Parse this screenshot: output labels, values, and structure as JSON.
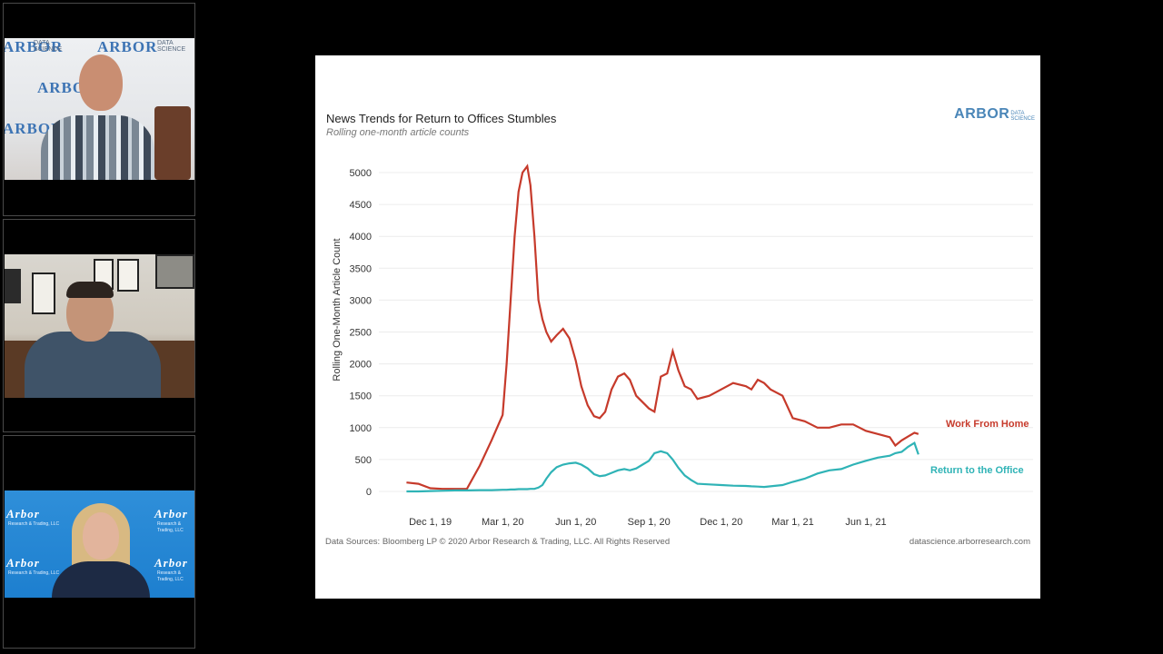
{
  "participants": [
    {
      "name": "participant-1",
      "backdrop_text": "ARBOR",
      "backdrop_sub": [
        "DATA",
        "SCIENCE"
      ]
    },
    {
      "name": "participant-2"
    },
    {
      "name": "participant-3",
      "backdrop_text": "Arbor",
      "backdrop_sub": [
        "Research & Trading, LLC"
      ]
    }
  ],
  "slide": {
    "title": "News Trends for Return to Offices Stumbles",
    "subtitle": "Rolling one-month article counts",
    "logo": {
      "main": "ARBOR",
      "sub1": "DATA",
      "sub2": "SCIENCE"
    },
    "footer_left": "Data Sources: Bloomberg LP © 2020 Arbor Research & Trading, LLC. All Rights Reserved",
    "footer_right": "datascience.arborresearch.com"
  },
  "colors": {
    "work_from_home": "#c63a2b",
    "return_to_office": "#2fb3b6"
  },
  "chart_data": {
    "type": "line",
    "title": "News Trends for Return to Offices Stumbles",
    "subtitle": "Rolling one-month article counts",
    "xlabel": "",
    "ylabel": "Rolling One-Month Article Count",
    "ylim": [
      0,
      5000
    ],
    "yticks": [
      "0",
      "500",
      "1000",
      "1500",
      "2000",
      "2500",
      "3000",
      "3500",
      "4000",
      "4500",
      "5000"
    ],
    "xticks": [
      "Dec 1, 19",
      "Mar 1, 20",
      "Jun 1, 20",
      "Sep 1, 20",
      "Dec 1, 20",
      "Mar 1, 21",
      "Jun 1, 21"
    ],
    "grid": true,
    "legend": "inline-labels",
    "x": [
      "2019-11-01",
      "2019-11-16",
      "2019-12-01",
      "2019-12-16",
      "2020-01-01",
      "2020-01-16",
      "2020-02-01",
      "2020-02-16",
      "2020-03-01",
      "2020-03-06",
      "2020-03-11",
      "2020-03-16",
      "2020-03-21",
      "2020-03-26",
      "2020-04-01",
      "2020-04-05",
      "2020-04-10",
      "2020-04-15",
      "2020-04-20",
      "2020-04-25",
      "2020-05-01",
      "2020-05-08",
      "2020-05-16",
      "2020-05-24",
      "2020-06-01",
      "2020-06-08",
      "2020-06-16",
      "2020-06-24",
      "2020-07-01",
      "2020-07-08",
      "2020-07-16",
      "2020-07-24",
      "2020-08-01",
      "2020-08-08",
      "2020-08-16",
      "2020-08-24",
      "2020-09-01",
      "2020-09-08",
      "2020-09-16",
      "2020-09-24",
      "2020-10-01",
      "2020-10-08",
      "2020-10-16",
      "2020-10-24",
      "2020-11-01",
      "2020-11-16",
      "2020-12-01",
      "2020-12-16",
      "2021-01-01",
      "2021-01-08",
      "2021-01-16",
      "2021-01-24",
      "2021-02-01",
      "2021-02-16",
      "2021-03-01",
      "2021-03-16",
      "2021-04-01",
      "2021-04-16",
      "2021-05-01",
      "2021-05-16",
      "2021-06-01",
      "2021-06-16",
      "2021-07-01",
      "2021-07-08",
      "2021-07-16",
      "2021-07-24",
      "2021-08-01",
      "2021-08-06"
    ],
    "series": [
      {
        "name": "Work From Home",
        "values": [
          140,
          120,
          50,
          40,
          40,
          40,
          400,
          800,
          1200,
          2000,
          3000,
          4000,
          4700,
          5000,
          5100,
          4800,
          4000,
          3000,
          2700,
          2500,
          2350,
          2450,
          2550,
          2400,
          2050,
          1650,
          1350,
          1180,
          1150,
          1250,
          1600,
          1800,
          1850,
          1750,
          1500,
          1400,
          1300,
          1250,
          1800,
          1850,
          2200,
          1900,
          1650,
          1600,
          1450,
          1500,
          1600,
          1700,
          1650,
          1600,
          1750,
          1700,
          1600,
          1500,
          1150,
          1100,
          1000,
          1000,
          1050,
          1050,
          950,
          900,
          850,
          720,
          800,
          860,
          920,
          900
        ]
      },
      {
        "name": "Return to the Office",
        "values": [
          0,
          0,
          5,
          10,
          15,
          15,
          20,
          20,
          25,
          25,
          30,
          30,
          35,
          35,
          35,
          40,
          40,
          60,
          100,
          200,
          300,
          380,
          420,
          440,
          450,
          420,
          360,
          270,
          240,
          250,
          290,
          330,
          350,
          330,
          360,
          420,
          480,
          600,
          630,
          600,
          500,
          370,
          250,
          180,
          120,
          110,
          100,
          90,
          85,
          80,
          75,
          70,
          80,
          100,
          150,
          200,
          280,
          330,
          350,
          420,
          480,
          530,
          560,
          600,
          620,
          700,
          760,
          580
        ]
      }
    ]
  }
}
